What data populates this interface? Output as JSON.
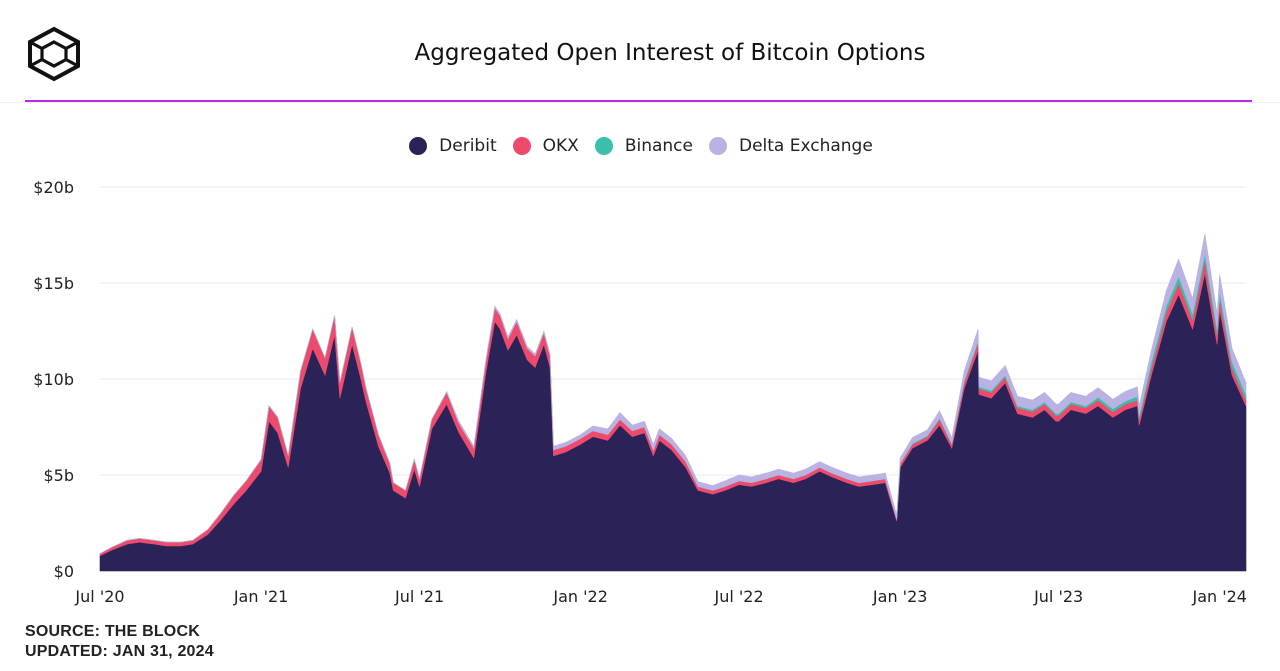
{
  "header": {
    "title": "Aggregated Open Interest of Bitcoin Options",
    "logo_icon": "the-block-cube-logo-icon"
  },
  "footer": {
    "source": "SOURCE: THE BLOCK",
    "updated": "UPDATED: JAN 31, 2024"
  },
  "colors": {
    "accent_rule": "#c125e6",
    "gridline": "#e9e9e9"
  },
  "chart_data": {
    "type": "area",
    "stacked": true,
    "title": "Aggregated Open Interest of Bitcoin Options",
    "xlabel": "",
    "ylabel": "",
    "legend_position": "top-center",
    "grid": true,
    "ylim": [
      0,
      20
    ],
    "y_ticks": [
      {
        "value": 0,
        "label": "$0"
      },
      {
        "value": 5,
        "label": "$5b"
      },
      {
        "value": 10,
        "label": "$10b"
      },
      {
        "value": 15,
        "label": "$15b"
      },
      {
        "value": 20,
        "label": "$20b"
      }
    ],
    "x_ticks": [
      {
        "date": "2020-07-01",
        "label": "Jul '20"
      },
      {
        "date": "2021-01-01",
        "label": "Jan '21"
      },
      {
        "date": "2021-07-01",
        "label": "Jul '21"
      },
      {
        "date": "2022-01-01",
        "label": "Jan '22"
      },
      {
        "date": "2022-07-01",
        "label": "Jul '22"
      },
      {
        "date": "2023-01-01",
        "label": "Jan '23"
      },
      {
        "date": "2023-07-01",
        "label": "Jul '23"
      },
      {
        "date": "2024-01-01",
        "label": "Jan '24"
      }
    ],
    "xlim": [
      "2020-07-01",
      "2024-01-31"
    ],
    "x": [
      "2020-07-01",
      "2020-07-15",
      "2020-08-01",
      "2020-08-15",
      "2020-09-01",
      "2020-09-15",
      "2020-10-01",
      "2020-10-15",
      "2020-11-01",
      "2020-11-15",
      "2020-12-01",
      "2020-12-15",
      "2021-01-01",
      "2021-01-10",
      "2021-01-20",
      "2021-02-01",
      "2021-02-15",
      "2021-03-01",
      "2021-03-15",
      "2021-03-26",
      "2021-04-01",
      "2021-04-15",
      "2021-04-25",
      "2021-05-01",
      "2021-05-15",
      "2021-05-28",
      "2021-06-01",
      "2021-06-15",
      "2021-06-25",
      "2021-07-01",
      "2021-07-15",
      "2021-08-01",
      "2021-08-15",
      "2021-09-01",
      "2021-09-15",
      "2021-09-25",
      "2021-10-01",
      "2021-10-10",
      "2021-10-20",
      "2021-11-01",
      "2021-11-10",
      "2021-11-20",
      "2021-11-27",
      "2021-12-01",
      "2021-12-15",
      "2022-01-01",
      "2022-01-15",
      "2022-02-01",
      "2022-02-15",
      "2022-03-01",
      "2022-03-15",
      "2022-03-25",
      "2022-04-01",
      "2022-04-15",
      "2022-05-01",
      "2022-05-15",
      "2022-06-01",
      "2022-06-15",
      "2022-07-01",
      "2022-07-15",
      "2022-08-01",
      "2022-08-15",
      "2022-09-01",
      "2022-09-15",
      "2022-10-01",
      "2022-10-15",
      "2022-11-01",
      "2022-11-15",
      "2022-12-01",
      "2022-12-15",
      "2022-12-28",
      "2023-01-01",
      "2023-01-15",
      "2023-02-01",
      "2023-02-15",
      "2023-03-01",
      "2023-03-15",
      "2023-03-31",
      "2023-04-01",
      "2023-04-15",
      "2023-05-01",
      "2023-05-15",
      "2023-06-01",
      "2023-06-15",
      "2023-06-28",
      "2023-07-01",
      "2023-07-15",
      "2023-08-01",
      "2023-08-15",
      "2023-09-01",
      "2023-09-15",
      "2023-09-29",
      "2023-10-01",
      "2023-10-15",
      "2023-11-01",
      "2023-11-15",
      "2023-12-01",
      "2023-12-15",
      "2023-12-29",
      "2024-01-01",
      "2024-01-15",
      "2024-01-31"
    ],
    "series": [
      {
        "name": "Deribit",
        "color": "#2b2358",
        "values": [
          0.8,
          1.1,
          1.4,
          1.5,
          1.4,
          1.3,
          1.3,
          1.4,
          1.9,
          2.6,
          3.5,
          4.2,
          5.2,
          7.8,
          7.2,
          5.4,
          9.5,
          11.6,
          10.2,
          12.3,
          9.0,
          11.8,
          10.0,
          8.8,
          6.5,
          5.1,
          4.2,
          3.8,
          5.3,
          4.4,
          7.4,
          8.7,
          7.2,
          5.9,
          10.4,
          13.0,
          12.6,
          11.5,
          12.3,
          11.0,
          10.6,
          11.8,
          10.6,
          6.0,
          6.2,
          6.6,
          7.0,
          6.8,
          7.6,
          7.0,
          7.2,
          6.0,
          6.8,
          6.3,
          5.4,
          4.2,
          4.0,
          4.2,
          4.5,
          4.4,
          4.6,
          4.8,
          4.6,
          4.8,
          5.2,
          4.9,
          4.6,
          4.4,
          4.5,
          4.6,
          2.6,
          5.4,
          6.4,
          6.8,
          7.6,
          6.4,
          9.5,
          11.5,
          9.2,
          9.0,
          9.8,
          8.2,
          8.0,
          8.4,
          7.8,
          7.8,
          8.4,
          8.2,
          8.6,
          8.0,
          8.4,
          8.6,
          7.6,
          10.2,
          13.0,
          14.4,
          12.6,
          15.5,
          11.8,
          13.6,
          10.2,
          8.6
        ]
      },
      {
        "name": "OKX",
        "color": "#ef4a6b",
        "values": [
          0.1,
          0.15,
          0.2,
          0.2,
          0.2,
          0.2,
          0.2,
          0.2,
          0.25,
          0.35,
          0.45,
          0.5,
          0.6,
          0.8,
          0.8,
          0.6,
          0.9,
          1.0,
          0.9,
          1.0,
          0.8,
          0.9,
          0.8,
          0.7,
          0.6,
          0.5,
          0.4,
          0.4,
          0.5,
          0.4,
          0.5,
          0.6,
          0.5,
          0.5,
          0.6,
          0.7,
          0.7,
          0.6,
          0.7,
          0.6,
          0.6,
          0.6,
          0.6,
          0.3,
          0.3,
          0.3,
          0.3,
          0.3,
          0.3,
          0.3,
          0.3,
          0.3,
          0.3,
          0.3,
          0.3,
          0.2,
          0.2,
          0.2,
          0.2,
          0.2,
          0.2,
          0.2,
          0.2,
          0.2,
          0.2,
          0.2,
          0.2,
          0.2,
          0.2,
          0.2,
          0.1,
          0.2,
          0.2,
          0.2,
          0.3,
          0.2,
          0.3,
          0.4,
          0.3,
          0.3,
          0.3,
          0.3,
          0.3,
          0.3,
          0.3,
          0.3,
          0.3,
          0.3,
          0.3,
          0.3,
          0.3,
          0.3,
          0.3,
          0.4,
          0.5,
          0.6,
          0.5,
          0.7,
          0.5,
          0.6,
          0.4,
          0.3
        ]
      },
      {
        "name": "Binance",
        "color": "#3bbfad",
        "values": [
          0,
          0,
          0,
          0,
          0,
          0,
          0,
          0,
          0,
          0,
          0,
          0,
          0,
          0,
          0,
          0,
          0,
          0,
          0,
          0,
          0,
          0,
          0,
          0,
          0,
          0,
          0,
          0,
          0,
          0,
          0,
          0,
          0,
          0,
          0,
          0,
          0,
          0,
          0,
          0,
          0,
          0,
          0,
          0,
          0,
          0,
          0,
          0,
          0,
          0,
          0,
          0,
          0,
          0,
          0,
          0,
          0,
          0,
          0,
          0,
          0,
          0,
          0,
          0,
          0,
          0,
          0,
          0,
          0,
          0,
          0,
          0,
          0.05,
          0.05,
          0.05,
          0.05,
          0.1,
          0.1,
          0.1,
          0.1,
          0.1,
          0.1,
          0.1,
          0.1,
          0.1,
          0.1,
          0.1,
          0.1,
          0.15,
          0.15,
          0.15,
          0.2,
          0.2,
          0.3,
          0.3,
          0.35,
          0.3,
          0.35,
          0.3,
          0.35,
          0.3,
          0.3
        ]
      },
      {
        "name": "Delta Exchange",
        "color": "#b9b2e3",
        "values": [
          0,
          0,
          0,
          0,
          0,
          0,
          0,
          0,
          0,
          0,
          0,
          0,
          0,
          0,
          0,
          0,
          0,
          0,
          0,
          0,
          0,
          0,
          0,
          0,
          0,
          0,
          0,
          0,
          0,
          0,
          0,
          0.05,
          0.1,
          0.1,
          0.1,
          0.1,
          0.1,
          0.1,
          0.1,
          0.1,
          0.1,
          0.1,
          0.1,
          0.2,
          0.2,
          0.2,
          0.25,
          0.3,
          0.35,
          0.3,
          0.3,
          0.3,
          0.3,
          0.3,
          0.3,
          0.25,
          0.25,
          0.3,
          0.3,
          0.3,
          0.3,
          0.3,
          0.3,
          0.3,
          0.3,
          0.3,
          0.3,
          0.3,
          0.3,
          0.3,
          0.2,
          0.3,
          0.3,
          0.3,
          0.4,
          0.3,
          0.5,
          0.6,
          0.5,
          0.5,
          0.5,
          0.5,
          0.5,
          0.5,
          0.5,
          0.5,
          0.5,
          0.5,
          0.5,
          0.5,
          0.5,
          0.5,
          0.5,
          0.6,
          0.8,
          0.9,
          0.8,
          1.0,
          0.8,
          0.9,
          0.7,
          0.6
        ]
      }
    ]
  }
}
